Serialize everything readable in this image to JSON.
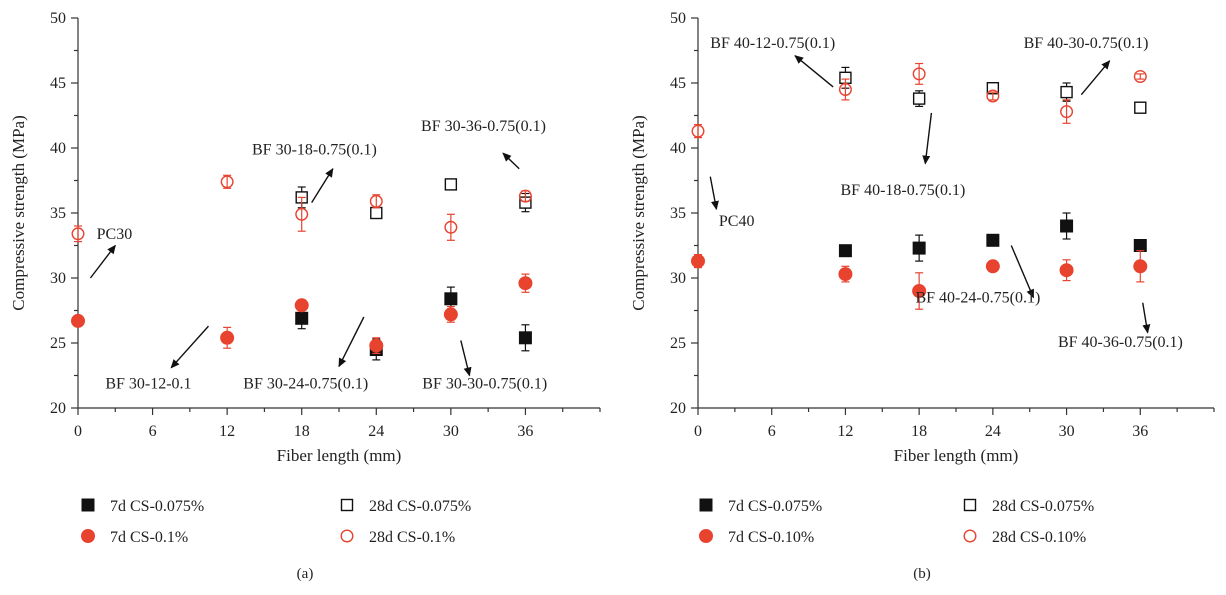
{
  "colors": {
    "black": "#111111",
    "red": "#e8432f",
    "axis": "#333333"
  },
  "chart_data": [
    {
      "type": "scatter",
      "panel_label": "(a)",
      "xlabel": "Fiber length (mm)",
      "ylabel": "Compressive strength (MPa)",
      "xlim": [
        0,
        42
      ],
      "ylim": [
        20,
        50
      ],
      "xticks": [
        0,
        6,
        12,
        18,
        24,
        30,
        36
      ],
      "yticks": [
        20,
        25,
        30,
        35,
        40,
        45,
        50
      ],
      "grid": false,
      "legend_position": "below",
      "series": [
        {
          "name": "7d CS-0.075%",
          "marker": "filled-square",
          "color": "#111111",
          "points": [
            {
              "x": 18,
              "y": 26.9,
              "err": 0.8
            },
            {
              "x": 24,
              "y": 24.5,
              "err": 0.8
            },
            {
              "x": 30,
              "y": 28.4,
              "err": 0.9
            },
            {
              "x": 36,
              "y": 25.4,
              "err": 1.0
            }
          ]
        },
        {
          "name": "28d CS-0.075%",
          "marker": "open-square",
          "color": "#111111",
          "points": [
            {
              "x": 18,
              "y": 36.2,
              "err": 0.8
            },
            {
              "x": 24,
              "y": 35.0,
              "err": 0.3
            },
            {
              "x": 30,
              "y": 37.2,
              "err": 0.3
            },
            {
              "x": 36,
              "y": 35.8,
              "err": 0.7
            }
          ]
        },
        {
          "name": "7d CS-0.1%",
          "marker": "filled-circle",
          "color": "#e8432f",
          "points": [
            {
              "x": 0,
              "y": 26.7,
              "err": 0.3
            },
            {
              "x": 12,
              "y": 25.4,
              "err": 0.8
            },
            {
              "x": 18,
              "y": 27.9,
              "err": 0.3
            },
            {
              "x": 24,
              "y": 24.8,
              "err": 0.6
            },
            {
              "x": 30,
              "y": 27.2,
              "err": 0.6
            },
            {
              "x": 36,
              "y": 29.6,
              "err": 0.7
            }
          ]
        },
        {
          "name": "28d CS-0.1%",
          "marker": "open-circle",
          "color": "#e8432f",
          "points": [
            {
              "x": 0,
              "y": 33.4,
              "err": 0.6
            },
            {
              "x": 12,
              "y": 37.4,
              "err": 0.5
            },
            {
              "x": 18,
              "y": 34.9,
              "err": 1.3
            },
            {
              "x": 24,
              "y": 35.9,
              "err": 0.5
            },
            {
              "x": 30,
              "y": 33.9,
              "err": 1.0
            },
            {
              "x": 36,
              "y": 36.3,
              "err": 0.4
            }
          ]
        }
      ],
      "annotations": [
        {
          "text": "PC30",
          "tx": 1.5,
          "ty": 33.0,
          "ax0": 1.0,
          "ay0": 30.0,
          "ax1": 3.0,
          "ay1": 32.5
        },
        {
          "text": "BF 30-12-0.1",
          "tx": 2.2,
          "ty": 21.5,
          "ax0": 10.5,
          "ay0": 26.3,
          "ax1": 7.5,
          "ay1": 23.1
        },
        {
          "text": "BF 30-18-0.75(0.1)",
          "tx": 14.0,
          "ty": 39.5,
          "ax0": 18.8,
          "ay0": 35.8,
          "ax1": 20.5,
          "ay1": 38.4
        },
        {
          "text": "BF 30-24-0.75(0.1)",
          "tx": 13.3,
          "ty": 21.5,
          "ax0": 23.0,
          "ay0": 27.0,
          "ax1": 21.0,
          "ay1": 23.2
        },
        {
          "text": "BF 30-36-0.75(0.1)",
          "tx": 27.6,
          "ty": 41.3,
          "ax0": 35.5,
          "ay0": 38.4,
          "ax1": 34.2,
          "ay1": 39.6
        },
        {
          "text": "BF 30-30-0.75(0.1)",
          "tx": 27.7,
          "ty": 21.5,
          "ax0": 30.8,
          "ay0": 25.2,
          "ax1": 31.5,
          "ay1": 22.5
        }
      ]
    },
    {
      "type": "scatter",
      "panel_label": "(b)",
      "xlabel": "Fiber length (mm)",
      "ylabel": "Compressive strength (MPa)",
      "xlim": [
        0,
        42
      ],
      "ylim": [
        20,
        50
      ],
      "xticks": [
        0,
        6,
        12,
        18,
        24,
        30,
        36
      ],
      "yticks": [
        20,
        25,
        30,
        35,
        40,
        45,
        50
      ],
      "grid": false,
      "legend_position": "below",
      "series": [
        {
          "name": "7d CS-0.075%",
          "marker": "filled-square",
          "color": "#111111",
          "points": [
            {
              "x": 12,
              "y": 32.1,
              "err": 0.3
            },
            {
              "x": 18,
              "y": 32.3,
              "err": 1.0
            },
            {
              "x": 24,
              "y": 32.9,
              "err": 0.4
            },
            {
              "x": 30,
              "y": 34.0,
              "err": 1.0
            },
            {
              "x": 36,
              "y": 32.5,
              "err": 0.4
            }
          ]
        },
        {
          "name": "28d CS-0.075%",
          "marker": "open-square",
          "color": "#111111",
          "points": [
            {
              "x": 12,
              "y": 45.4,
              "err": 0.8
            },
            {
              "x": 18,
              "y": 43.8,
              "err": 0.6
            },
            {
              "x": 24,
              "y": 44.6,
              "err": 0.4
            },
            {
              "x": 30,
              "y": 44.3,
              "err": 0.7
            },
            {
              "x": 36,
              "y": 43.1,
              "err": 0.3
            }
          ]
        },
        {
          "name": "7d CS-0.10%",
          "marker": "filled-circle",
          "color": "#e8432f",
          "points": [
            {
              "x": 0,
              "y": 31.3,
              "err": 0.5
            },
            {
              "x": 12,
              "y": 30.3,
              "err": 0.6
            },
            {
              "x": 18,
              "y": 29.0,
              "err": 1.4
            },
            {
              "x": 24,
              "y": 30.9,
              "err": 0.3
            },
            {
              "x": 30,
              "y": 30.6,
              "err": 0.8
            },
            {
              "x": 36,
              "y": 30.9,
              "err": 1.2
            }
          ]
        },
        {
          "name": "28d CS-0.10%",
          "marker": "open-circle",
          "color": "#e8432f",
          "points": [
            {
              "x": 0,
              "y": 41.3,
              "err": 0.5
            },
            {
              "x": 12,
              "y": 44.5,
              "err": 0.8
            },
            {
              "x": 18,
              "y": 45.7,
              "err": 0.8
            },
            {
              "x": 24,
              "y": 44.0,
              "err": 0.3
            },
            {
              "x": 30,
              "y": 42.8,
              "err": 0.9
            },
            {
              "x": 36,
              "y": 45.5,
              "err": 0.2
            }
          ]
        }
      ],
      "annotations": [
        {
          "text": "BF 40-12-0.75(0.1)",
          "tx": 1.0,
          "ty": 47.7,
          "ax0": 11.0,
          "ay0": 44.7,
          "ax1": 7.9,
          "ay1": 47.1
        },
        {
          "text": "BF 40-30-0.75(0.1)",
          "tx": 26.5,
          "ty": 47.7,
          "ax0": 31.2,
          "ay0": 44.1,
          "ax1": 33.5,
          "ay1": 46.7
        },
        {
          "text": "BF 40-18-0.75(0.1)",
          "tx": 11.6,
          "ty": 36.4,
          "ax0": 19.0,
          "ay0": 42.7,
          "ax1": 18.5,
          "ay1": 38.8
        },
        {
          "text": "PC40",
          "tx": 1.7,
          "ty": 34.0,
          "ax0": 1.0,
          "ay0": 37.8,
          "ax1": 1.5,
          "ay1": 35.3
        },
        {
          "text": "BF 40-24-0.75(0.1)",
          "tx": 17.7,
          "ty": 28.1,
          "ax0": 25.5,
          "ay0": 32.5,
          "ax1": 27.3,
          "ay1": 28.5
        },
        {
          "text": "BF 40-36-0.75(0.1)",
          "tx": 29.3,
          "ty": 24.7,
          "ax0": 36.2,
          "ay0": 28.1,
          "ax1": 36.6,
          "ay1": 25.8
        }
      ]
    }
  ]
}
